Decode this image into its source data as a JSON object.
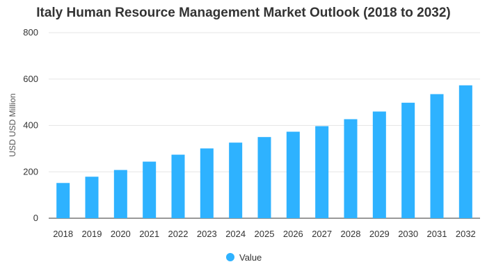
{
  "chart_data": {
    "type": "bar",
    "title": "Italy Human Resource Management Market Outlook (2018 to 2032)",
    "xlabel": "",
    "ylabel": "USD USD Million",
    "categories": [
      "2018",
      "2019",
      "2020",
      "2021",
      "2022",
      "2023",
      "2024",
      "2025",
      "2026",
      "2027",
      "2028",
      "2029",
      "2030",
      "2031",
      "2032"
    ],
    "series": [
      {
        "name": "Value",
        "values": [
          152,
          179,
          208,
          244,
          274,
          301,
          326,
          350,
          373,
          397,
          427,
          460,
          498,
          535,
          573
        ]
      }
    ],
    "ylim": [
      0,
      800
    ],
    "yticks": [
      0,
      200,
      400,
      600,
      800
    ],
    "grid": true,
    "legend_position": "bottom",
    "bar_color": "#2eb2ff"
  }
}
